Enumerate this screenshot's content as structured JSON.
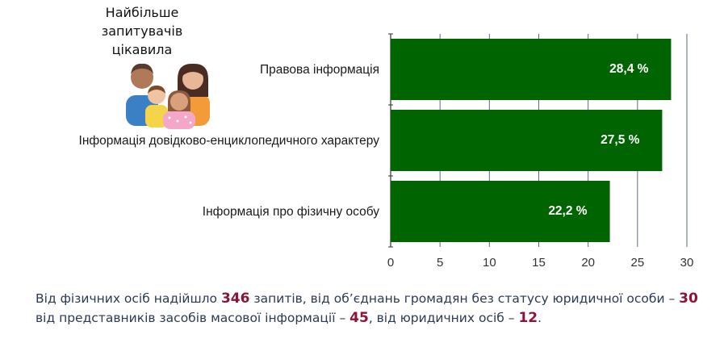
{
  "caption": {
    "line1": "Найбільше",
    "line2": "запитувачів",
    "line3": "цікавила"
  },
  "icon": "family-people-icon",
  "colors": {
    "bar": "#006400",
    "bar_label": "#ffffff",
    "grid": "#5a6a8a",
    "footnote_text": "#2b3a55",
    "footnote_number": "#8a1538"
  },
  "chart_data": {
    "type": "bar",
    "orientation": "horizontal",
    "categories": [
      "Правова інформація",
      "Інформація довідково-енциклопедичного характеру",
      "Інформація про фізичну особу"
    ],
    "values": [
      28.4,
      27.5,
      22.2
    ],
    "value_labels": [
      "28,4 %",
      "27,5 %",
      "22,2 %"
    ],
    "x_ticks": [
      "0",
      "5",
      "10",
      "15",
      "20",
      "25",
      "30"
    ],
    "xlim": [
      0,
      30
    ],
    "grid": true
  },
  "footnote": {
    "t1": "Від фізичних осіб надійшло ",
    "n1": "346",
    "t2": " запитів, від об’єднань громадян без статусу юридичної особи – ",
    "n2": "30",
    "t3": " від представників засобів масової інформації – ",
    "n3": "45",
    "t4": ", від юридичних осіб – ",
    "n4": "12",
    "t5": "."
  }
}
